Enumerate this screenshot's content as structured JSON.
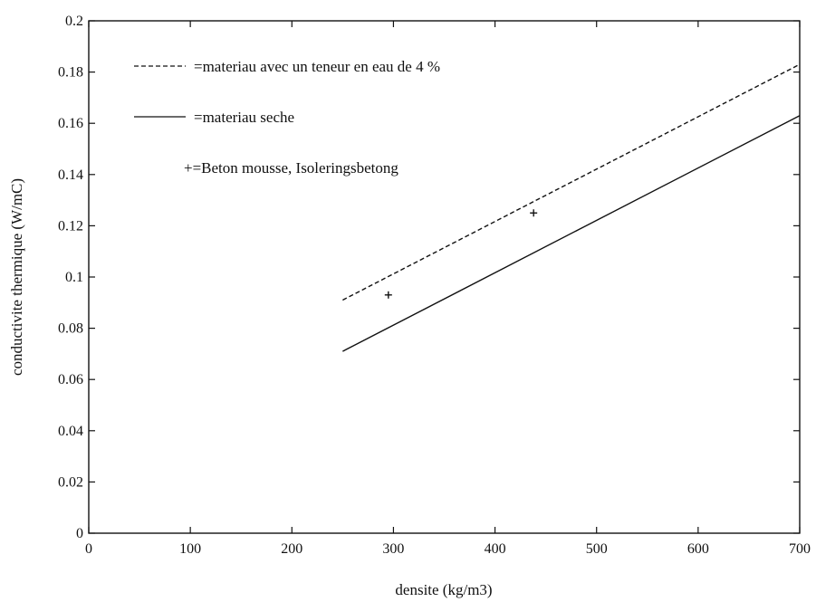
{
  "chart_data": {
    "type": "line",
    "xlabel": "densite (kg/m3)",
    "ylabel": "conductivite thermique (W/mC)",
    "xlim": [
      0,
      700
    ],
    "ylim": [
      0,
      0.2
    ],
    "xticks": [
      0,
      100,
      200,
      300,
      400,
      500,
      600,
      700
    ],
    "yticks": [
      0,
      0.02,
      0.04,
      0.06,
      0.08,
      0.1,
      0.12,
      0.14,
      0.16,
      0.18,
      0.2
    ],
    "xtick_labels": [
      "0",
      "100",
      "200",
      "300",
      "400",
      "500",
      "600",
      "700"
    ],
    "ytick_labels": [
      "0",
      "0.02",
      "0.04",
      "0.06",
      "0.08",
      "0.1",
      "0.12",
      "0.14",
      "0.16",
      "0.18",
      "0.2"
    ],
    "grid": false,
    "legend_position": "top-left",
    "series": [
      {
        "name": "=materiau avec un teneur en eau de 4 %",
        "style": "dashed",
        "color": "#111111",
        "x": [
          250,
          700
        ],
        "y": [
          0.091,
          0.183
        ]
      },
      {
        "name": "=materiau seche",
        "style": "solid",
        "color": "#111111",
        "x": [
          250,
          700
        ],
        "y": [
          0.071,
          0.163
        ]
      },
      {
        "name": "+=Beton mousse, Isoleringsbetong",
        "style": "markers",
        "marker": "+",
        "color": "#111111",
        "x": [
          295,
          438
        ],
        "y": [
          0.093,
          0.125
        ]
      }
    ]
  }
}
